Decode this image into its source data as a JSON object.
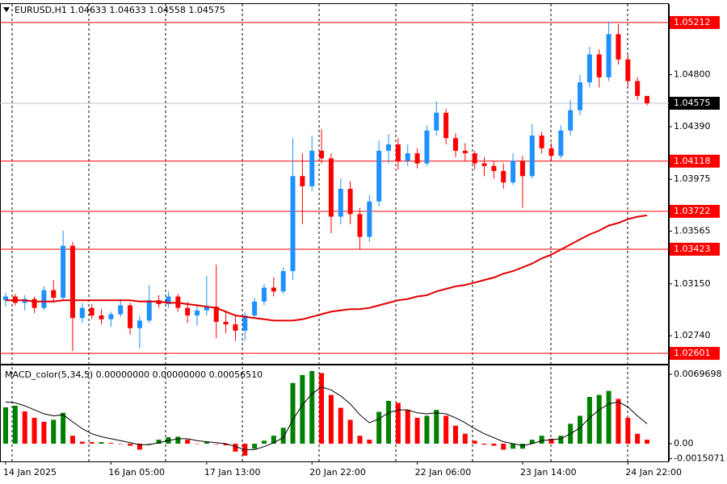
{
  "chart_data": [
    {
      "type": "candlestick",
      "title": "EURUSD,H1  1.04633 1.04633 1.04558 1.04575",
      "categories": [
        "14 Jan 2025",
        null,
        null,
        null,
        null,
        null,
        null,
        null,
        null,
        null,
        null,
        "16 Jan 05:00",
        null,
        null,
        null,
        null,
        null,
        null,
        null,
        null,
        null,
        "17 Jan 13:00",
        null,
        null,
        null,
        null,
        null,
        null,
        null,
        null,
        null,
        null,
        "20 Jan 22:00",
        null,
        null,
        null,
        null,
        null,
        null,
        null,
        null,
        null,
        null,
        "22 Jan 06:00",
        null,
        null,
        null,
        null,
        null,
        null,
        null,
        null,
        null,
        null,
        "23 Jan 14:00",
        null,
        null,
        null,
        null,
        null,
        null,
        null,
        null,
        null,
        null,
        "24 Jan 22:00",
        null,
        null
      ],
      "open": [
        1.0302,
        1.0305,
        1.03,
        1.0303,
        1.0296,
        1.031,
        1.0304,
        1.0345,
        1.0288,
        1.0296,
        1.029,
        1.0287,
        1.0291,
        1.0298,
        1.028,
        1.0286,
        1.0302,
        1.0299,
        1.0305,
        1.0296,
        1.029,
        1.0294,
        1.0297,
        1.0285,
        1.0283,
        1.0278,
        1.029,
        1.0301,
        1.0312,
        1.0309,
        1.0325,
        1.04,
        1.0392,
        1.042,
        1.0414,
        1.0368,
        1.039,
        1.037,
        1.0352,
        1.038,
        1.042,
        1.0425,
        1.0412,
        1.0418,
        1.041,
        1.0436,
        1.045,
        1.043,
        1.042,
        1.0418,
        1.041,
        1.0408,
        1.0404,
        1.0395,
        1.0412,
        1.04,
        1.0432,
        1.0422,
        1.0416,
        1.0436,
        1.0452,
        1.0474,
        1.0496,
        1.0478,
        1.0512,
        1.0492,
        1.0475,
        1.04633
      ],
      "high": [
        1.0308,
        1.0307,
        1.0306,
        1.0305,
        1.0313,
        1.0318,
        1.0357,
        1.0348,
        1.03,
        1.0299,
        1.0295,
        1.0293,
        1.0303,
        1.03,
        1.029,
        1.0314,
        1.0306,
        1.0309,
        1.0307,
        1.0301,
        1.0299,
        1.0321,
        1.033,
        1.0294,
        1.029,
        1.0293,
        1.0304,
        1.0315,
        1.032,
        1.0328,
        1.043,
        1.0418,
        1.0432,
        1.0437,
        1.0418,
        1.0398,
        1.0396,
        1.0375,
        1.0385,
        1.0428,
        1.0433,
        1.043,
        1.0425,
        1.0422,
        1.044,
        1.0459,
        1.0453,
        1.0434,
        1.0426,
        1.042,
        1.0415,
        1.0412,
        1.041,
        1.0418,
        1.0416,
        1.0441,
        1.0435,
        1.0426,
        1.044,
        1.046,
        1.048,
        1.0502,
        1.05,
        1.0522,
        1.052,
        1.0496,
        1.0478,
        1.04633
      ],
      "low": [
        1.0297,
        1.0298,
        1.0294,
        1.0292,
        1.0294,
        1.03,
        1.0302,
        1.0262,
        1.0284,
        1.0287,
        1.0283,
        1.0281,
        1.0289,
        1.0275,
        1.0264,
        1.0284,
        1.0296,
        1.0296,
        1.0293,
        1.0284,
        1.0282,
        1.029,
        1.0272,
        1.0276,
        1.027,
        1.027,
        1.0288,
        1.0298,
        1.0305,
        1.0307,
        1.0318,
        1.0362,
        1.0388,
        1.041,
        1.0355,
        1.0362,
        1.0362,
        1.0342,
        1.0348,
        1.0376,
        1.041,
        1.0405,
        1.0408,
        1.0406,
        1.0408,
        1.0432,
        1.0425,
        1.0415,
        1.0412,
        1.0405,
        1.04,
        1.0398,
        1.039,
        1.0393,
        1.0375,
        1.0398,
        1.0418,
        1.0412,
        1.0414,
        1.0432,
        1.0448,
        1.047,
        1.047,
        1.0475,
        1.0488,
        1.047,
        1.046,
        1.04558
      ],
      "close": [
        1.0305,
        1.03,
        1.0303,
        1.0296,
        1.031,
        1.0304,
        1.0345,
        1.0288,
        1.0296,
        1.029,
        1.0287,
        1.0291,
        1.0298,
        1.028,
        1.0286,
        1.0302,
        1.0299,
        1.0305,
        1.0296,
        1.029,
        1.0294,
        1.0297,
        1.0285,
        1.0283,
        1.0278,
        1.029,
        1.0301,
        1.0312,
        1.0309,
        1.0325,
        1.04,
        1.0392,
        1.042,
        1.0414,
        1.0368,
        1.039,
        1.037,
        1.0352,
        1.038,
        1.042,
        1.0425,
        1.0412,
        1.0418,
        1.041,
        1.0436,
        1.045,
        1.043,
        1.042,
        1.0418,
        1.041,
        1.0408,
        1.0404,
        1.0395,
        1.0412,
        1.04,
        1.0432,
        1.0422,
        1.0416,
        1.0436,
        1.0452,
        1.0474,
        1.0496,
        1.0478,
        1.0512,
        1.0492,
        1.0475,
        1.04633,
        1.04575
      ],
      "colors": {
        "up": "#1e90ff",
        "down": "#ff0000"
      },
      "ma": {
        "color": "#e00000",
        "values": [
          1.0302,
          1.0302,
          1.0302,
          1.0301,
          1.0301,
          1.0301,
          1.0302,
          1.0302,
          1.0302,
          1.0302,
          1.0302,
          1.0302,
          1.0302,
          1.0302,
          1.0301,
          1.0301,
          1.0301,
          1.03,
          1.03,
          1.0299,
          1.0298,
          1.0297,
          1.0296,
          1.0293,
          1.029,
          1.0289,
          1.0288,
          1.0287,
          1.0286,
          1.0286,
          1.0286,
          1.0287,
          1.0289,
          1.0291,
          1.0293,
          1.0294,
          1.0295,
          1.0295,
          1.0296,
          1.0298,
          1.03,
          1.0302,
          1.0303,
          1.0305,
          1.0306,
          1.0309,
          1.0311,
          1.0313,
          1.0314,
          1.0316,
          1.0318,
          1.032,
          1.0323,
          1.0325,
          1.0328,
          1.0331,
          1.0335,
          1.0338,
          1.0342,
          1.0346,
          1.035,
          1.0354,
          1.0357,
          1.0361,
          1.0363,
          1.0366,
          1.0368,
          1.0369
        ]
      },
      "levels": [
        1.05212,
        1.04118,
        1.03722,
        1.03423,
        1.02601
      ],
      "level_color": "#ff0000",
      "current_price": 1.04575,
      "ylim": [
        1.02525,
        1.05358
      ],
      "yticks": [
        {
          "value": 1.048,
          "label": "1.04800"
        },
        {
          "value": 1.0439,
          "label": "1.04390"
        },
        1.03975,
        1.03565,
        {
          "value": 1.0315,
          "label": "1.03150"
        },
        {
          "value": 1.0274,
          "label": "1.02740"
        }
      ]
    },
    {
      "type": "bar",
      "title": "MACD_color(5,34,5) 0.00000000 0.00000000 0.00056510",
      "values": [
        0.00365,
        0.00381,
        0.00324,
        0.0026,
        0.0022,
        0.0024,
        0.0031,
        0.0008,
        0.0002,
        0.00016,
        0.00016,
        8e-05,
        0.0,
        -0.0002,
        -0.0006,
        0.0,
        0.0004,
        0.00065,
        0.0007,
        0.0004,
        2e-05,
        0.00016,
        0.0,
        -0.00016,
        -0.0008,
        -0.0012,
        -0.0005,
        0.0003,
        0.0008,
        0.0016,
        0.0061,
        0.0069,
        0.0073,
        0.0071,
        0.0049,
        0.0036,
        0.0024,
        0.0008,
        0.0004,
        0.0032,
        0.0043,
        0.0041,
        0.0034,
        0.0026,
        0.0028,
        0.0034,
        0.0028,
        0.0018,
        0.001,
        0.0003,
        -0.0001,
        -0.0002,
        -0.0006,
        -0.0005,
        -0.0005,
        0.0004,
        0.0008,
        0.0005,
        0.0008,
        0.002,
        0.0028,
        0.0047,
        0.0049,
        0.0053,
        0.0045,
        0.0026,
        0.001,
        0.0004
      ],
      "colors": {
        "up": "#008000",
        "down": "#ff0000"
      },
      "signal": {
        "color": "#000000",
        "values": [
          0.0042,
          0.0041,
          0.0038,
          0.0034,
          0.003,
          0.0028,
          0.0029,
          0.0022,
          0.0015,
          0.001,
          0.0007,
          0.0005,
          0.0003,
          0.0001,
          -0.0001,
          -0.0001,
          0.0001,
          0.0003,
          0.0005,
          0.0005,
          0.0003,
          0.0002,
          0.0001,
          0.0,
          -0.0003,
          -0.0006,
          -0.0006,
          -0.0003,
          0.0001,
          0.0006,
          0.0024,
          0.0039,
          0.005,
          0.0057,
          0.0054,
          0.0048,
          0.004,
          0.0029,
          0.0021,
          0.0025,
          0.0031,
          0.0034,
          0.0034,
          0.0031,
          0.003,
          0.0031,
          0.003,
          0.0026,
          0.0021,
          0.0015,
          0.001,
          0.0006,
          0.0002,
          0.0,
          -0.0002,
          0.0,
          0.0003,
          0.0004,
          0.0005,
          0.001,
          0.0016,
          0.0026,
          0.0034,
          0.004,
          0.0042,
          0.0037,
          0.0028,
          0.002
        ]
      },
      "ylim": [
        -0.00178,
        0.0077
      ],
      "yticks": [
        0.0069698,
        {
          "value": 0,
          "label": "0.00"
        },
        -0.0015071
      ]
    }
  ]
}
